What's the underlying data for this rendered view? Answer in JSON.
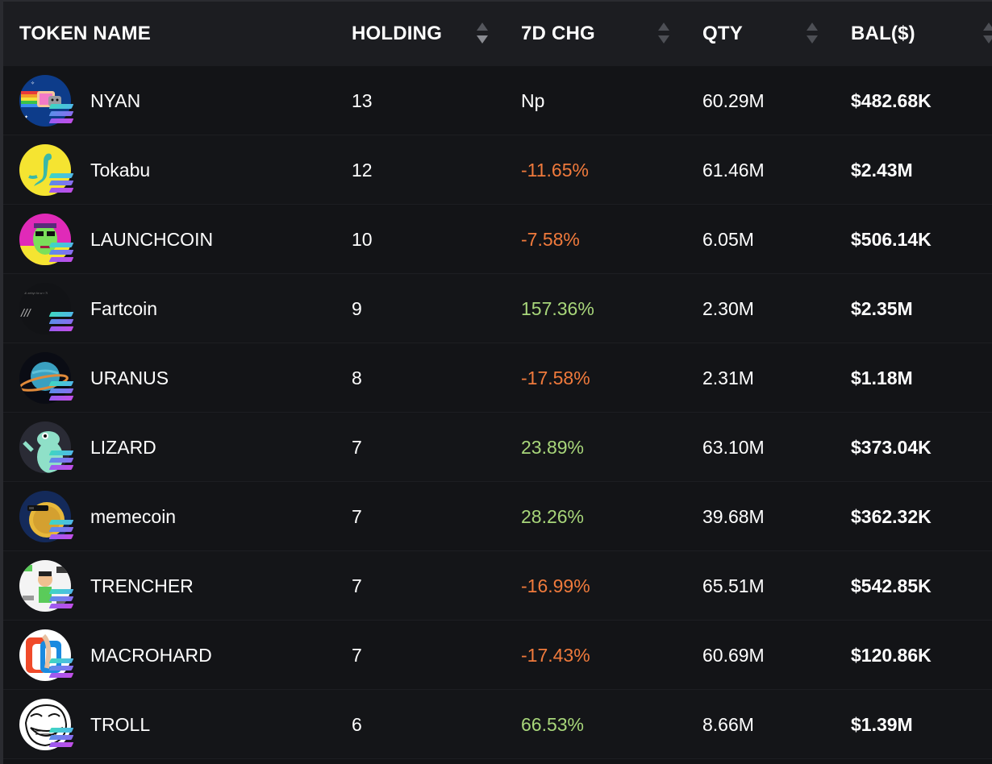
{
  "table": {
    "columns": {
      "token_name": "TOKEN NAME",
      "holding": "HOLDING",
      "chg7d": "7D CHG",
      "qty": "QTY",
      "bal": "BAL($)"
    },
    "rows": [
      {
        "name": "NYAN",
        "holding": "13",
        "chg": "Np",
        "chg_status": "neutral",
        "qty": "60.29M",
        "bal": "$482.68K",
        "avatar_icon": "nyan-cat-icon"
      },
      {
        "name": "Tokabu",
        "holding": "12",
        "chg": "-11.65%",
        "chg_status": "negative",
        "qty": "61.46M",
        "bal": "$2.43M",
        "avatar_icon": "tokabu-icon"
      },
      {
        "name": "LAUNCHCOIN",
        "holding": "10",
        "chg": "-7.58%",
        "chg_status": "negative",
        "qty": "6.05M",
        "bal": "$506.14K",
        "avatar_icon": "launchcoin-icon"
      },
      {
        "name": "Fartcoin",
        "holding": "9",
        "chg": "157.36%",
        "chg_status": "positive",
        "qty": "2.30M",
        "bal": "$2.35M",
        "avatar_icon": "fartcoin-icon"
      },
      {
        "name": "URANUS",
        "holding": "8",
        "chg": "-17.58%",
        "chg_status": "negative",
        "qty": "2.31M",
        "bal": "$1.18M",
        "avatar_icon": "uranus-planet-icon"
      },
      {
        "name": "LIZARD",
        "holding": "7",
        "chg": "23.89%",
        "chg_status": "positive",
        "qty": "63.10M",
        "bal": "$373.04K",
        "avatar_icon": "lizard-icon"
      },
      {
        "name": "memecoin",
        "holding": "7",
        "chg": "28.26%",
        "chg_status": "positive",
        "qty": "39.68M",
        "bal": "$362.32K",
        "avatar_icon": "memecoin-icon"
      },
      {
        "name": "TRENCHER",
        "holding": "7",
        "chg": "-16.99%",
        "chg_status": "negative",
        "qty": "65.51M",
        "bal": "$542.85K",
        "avatar_icon": "trencher-icon"
      },
      {
        "name": "MACROHARD",
        "holding": "7",
        "chg": "-17.43%",
        "chg_status": "negative",
        "qty": "60.69M",
        "bal": "$120.86K",
        "avatar_icon": "macrohard-icon"
      },
      {
        "name": "TROLL",
        "holding": "6",
        "chg": "66.53%",
        "chg_status": "positive",
        "qty": "8.66M",
        "bal": "$1.39M",
        "avatar_icon": "troll-face-icon"
      }
    ]
  },
  "colors": {
    "positive": "#a8d67a",
    "negative": "#f07a3c",
    "header_bg": "#1c1d21",
    "row_bg": "#131417"
  },
  "chain_badge_icon": "solana-icon"
}
